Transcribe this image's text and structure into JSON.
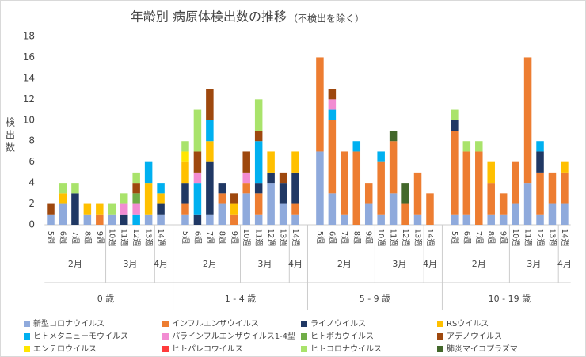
{
  "chart_data": {
    "type": "bar",
    "stacked": true,
    "grid": false,
    "title": "年齢別 病原体検出数の推移",
    "subtitle": "（不検出を除く）",
    "ylabel": "検出数",
    "ylim": [
      0,
      18
    ],
    "yticks": [
      0,
      2,
      4,
      6,
      8,
      10,
      12,
      14,
      16,
      18
    ],
    "category_groups": [
      {
        "name": "0 歳",
        "months": [
          {
            "name": "2月",
            "weeks": [
              "5週",
              "6週",
              "7週",
              "8週",
              "9週"
            ]
          },
          {
            "name": "3月",
            "weeks": [
              "10週",
              "11週",
              "12週",
              "13週"
            ]
          },
          {
            "name": "4月",
            "weeks": [
              "14週"
            ]
          }
        ]
      },
      {
        "name": "1 - 4 歳",
        "months": [
          {
            "name": "2月",
            "weeks": [
              "5週",
              "6週",
              "7週",
              "8週",
              "9週"
            ]
          },
          {
            "name": "3月",
            "weeks": [
              "10週",
              "11週",
              "12週",
              "13週"
            ]
          },
          {
            "name": "4月",
            "weeks": [
              "14週"
            ]
          }
        ]
      },
      {
        "name": "5 - 9 歳",
        "months": [
          {
            "name": "2月",
            "weeks": [
              "5週",
              "6週",
              "7週",
              "8週",
              "9週"
            ]
          },
          {
            "name": "3月",
            "weeks": [
              "10週",
              "11週",
              "12週",
              "13週"
            ]
          },
          {
            "name": "4月",
            "weeks": [
              "14週"
            ]
          }
        ]
      },
      {
        "name": "10 - 19 歳",
        "months": [
          {
            "name": "2月",
            "weeks": [
              "5週",
              "6週",
              "7週",
              "8週",
              "9週"
            ]
          },
          {
            "name": "3月",
            "weeks": [
              "10週",
              "11週",
              "12週",
              "13週"
            ]
          },
          {
            "name": "4月",
            "weeks": [
              "14週"
            ]
          }
        ]
      }
    ],
    "series": [
      {
        "name": "新型コロナウイルス",
        "color": "#8faadc",
        "values": [
          1,
          2,
          0,
          1,
          0,
          1,
          0,
          0,
          1,
          1,
          1,
          0,
          1,
          2,
          0,
          3,
          1,
          4,
          2,
          1,
          7,
          3,
          1,
          0,
          2,
          1,
          3,
          0,
          1,
          0,
          1,
          1,
          0,
          1,
          1,
          2,
          4,
          1,
          2,
          2
        ]
      },
      {
        "name": "インフルエンザウイルス",
        "color": "#ed7d31",
        "values": [
          0,
          0,
          0,
          0,
          1,
          0,
          0,
          0,
          0,
          0,
          1,
          0,
          0,
          1,
          1,
          1,
          2,
          0,
          0,
          1,
          9,
          7,
          6,
          7,
          2,
          5,
          5,
          2,
          4,
          3,
          8,
          6,
          7,
          3,
          2,
          4,
          12,
          4,
          3,
          3
        ]
      },
      {
        "name": "ライノウイルス",
        "color": "#203864",
        "values": [
          0,
          0,
          3,
          0,
          0,
          0,
          1,
          0,
          0,
          1,
          2,
          1,
          5,
          1,
          0,
          0,
          1,
          1,
          2,
          3,
          0,
          0,
          0,
          0,
          0,
          0,
          0,
          0,
          0,
          0,
          1,
          0,
          0,
          0,
          0,
          0,
          0,
          2,
          0,
          0
        ]
      },
      {
        "name": "RSウイルス",
        "color": "#ffc000",
        "values": [
          0,
          1,
          0,
          1,
          1,
          0,
          0,
          0,
          3,
          1,
          2,
          0,
          2,
          0,
          1,
          0,
          0,
          2,
          0,
          2,
          0,
          0,
          0,
          0,
          0,
          0,
          0,
          0,
          0,
          0,
          0,
          0,
          0,
          2,
          0,
          0,
          0,
          0,
          0,
          1
        ]
      },
      {
        "name": "ヒトメタニューモウイルス",
        "color": "#00b0f0",
        "values": [
          0,
          0,
          0,
          0,
          0,
          0,
          0,
          1,
          2,
          1,
          0,
          3,
          2,
          0,
          0,
          0,
          4,
          0,
          0,
          0,
          0,
          1,
          0,
          1,
          0,
          1,
          0,
          0,
          0,
          0,
          0,
          0,
          0,
          0,
          0,
          0,
          0,
          1,
          0,
          0
        ]
      },
      {
        "name": "パラインフルエンザウイルス1-4型",
        "color": "#f28cd2",
        "values": [
          0,
          0,
          0,
          0,
          0,
          0,
          1,
          1,
          0,
          0,
          0,
          1,
          0,
          0,
          0,
          1,
          0,
          0,
          0,
          0,
          0,
          1,
          0,
          0,
          0,
          0,
          0,
          0,
          0,
          0,
          0,
          0,
          0,
          0,
          0,
          0,
          0,
          0,
          0,
          0
        ]
      },
      {
        "name": "ヒトボカウイルス",
        "color": "#70ad47",
        "values": [
          0,
          0,
          0,
          0,
          0,
          0,
          0,
          1,
          0,
          0,
          0,
          0,
          0,
          0,
          0,
          0,
          0,
          0,
          0,
          0,
          0,
          0,
          0,
          0,
          0,
          0,
          0,
          0,
          0,
          0,
          0,
          0,
          0,
          0,
          0,
          0,
          0,
          0,
          0,
          0
        ]
      },
      {
        "name": "アデノウイルス",
        "color": "#9e480e",
        "values": [
          1,
          0,
          0,
          0,
          0,
          0,
          0,
          1,
          0,
          0,
          0,
          2,
          3,
          0,
          1,
          2,
          1,
          0,
          1,
          0,
          0,
          1,
          0,
          0,
          0,
          0,
          0,
          0,
          0,
          0,
          0,
          0,
          0,
          0,
          0,
          0,
          0,
          0,
          0,
          0
        ]
      },
      {
        "name": "エンテロウイルス",
        "color": "#ffe600",
        "values": [
          0,
          0,
          0,
          0,
          0,
          0,
          0,
          0,
          0,
          0,
          1,
          0,
          0,
          0,
          0,
          0,
          0,
          0,
          0,
          0,
          0,
          0,
          0,
          0,
          0,
          0,
          0,
          0,
          0,
          0,
          0,
          0,
          0,
          0,
          0,
          0,
          0,
          0,
          0,
          0
        ]
      },
      {
        "name": "ヒトパレコウイルス",
        "color": "#ff3b3b",
        "values": [
          0,
          0,
          0,
          0,
          0,
          0,
          0,
          0,
          0,
          0,
          0,
          0,
          0,
          0,
          0,
          0,
          0,
          0,
          0,
          0,
          0,
          0,
          0,
          0,
          0,
          0,
          0,
          0,
          0,
          0,
          0,
          0,
          0,
          0,
          0,
          0,
          0,
          0,
          0,
          0
        ]
      },
      {
        "name": "ヒトコロナウイルス",
        "color": "#a9e36b",
        "values": [
          0,
          1,
          1,
          0,
          0,
          1,
          1,
          1,
          0,
          0,
          1,
          4,
          0,
          0,
          0,
          0,
          3,
          0,
          0,
          0,
          0,
          0,
          0,
          0,
          0,
          0,
          0,
          0,
          0,
          0,
          1,
          1,
          1,
          0,
          0,
          0,
          0,
          0,
          0,
          0
        ]
      },
      {
        "name": "肺炎マイコプラズマ",
        "color": "#43682b",
        "values": [
          0,
          0,
          0,
          0,
          0,
          0,
          0,
          0,
          0,
          0,
          0,
          0,
          0,
          0,
          0,
          0,
          0,
          0,
          0,
          0,
          0,
          0,
          0,
          0,
          0,
          0,
          1,
          2,
          0,
          0,
          0,
          0,
          0,
          0,
          0,
          0,
          0,
          0,
          0,
          0
        ]
      }
    ]
  }
}
